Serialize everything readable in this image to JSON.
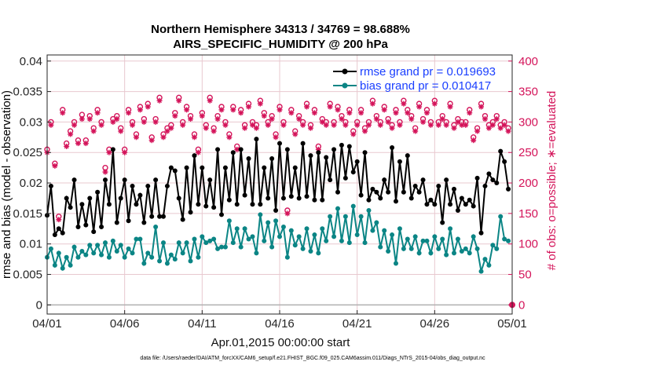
{
  "chart_data": {
    "type": "line",
    "title": "Northern Hemisphere 34313 / 34769 = 98.688%",
    "subtitle": "AIRS_SPECIFIC_HUMIDITY @ 200 hPa",
    "xlabel": "Apr.01,2015 00:00:00 start",
    "ylabel_left": "rmse and bias (model - observation)",
    "ylabel_right": "# of obs: o=possible; ∗=evaluated",
    "footnote": "data file: /Users/raeder/DAI/ATM_forcXX/CAM6_setup/f.e21.FHIST_BGC.f09_025.CAM6assim.011/Diags_NTrS_2015-04/obs_diag_output.nc",
    "xlim": [
      0,
      30
    ],
    "ylim_left": [
      -0.0015,
      0.041
    ],
    "ylim_right": [
      -15,
      410
    ],
    "x_tick_values": [
      0,
      5,
      10,
      15,
      20,
      25,
      30
    ],
    "x_tick_labels": [
      "04/01",
      "04/06",
      "04/11",
      "04/16",
      "04/21",
      "04/26",
      "05/01"
    ],
    "y_left_ticks": [
      "0",
      "0.005",
      "0.01",
      "0.015",
      "0.02",
      "0.025",
      "0.03",
      "0.035",
      "0.04"
    ],
    "y_left_tick_values": [
      0,
      0.005,
      0.01,
      0.015,
      0.02,
      0.025,
      0.03,
      0.035,
      0.04
    ],
    "y_right_ticks": [
      "0",
      "50",
      "100",
      "150",
      "200",
      "250",
      "300",
      "350",
      "400"
    ],
    "y_right_tick_values": [
      0,
      50,
      100,
      150,
      200,
      250,
      300,
      350,
      400
    ],
    "legend_position": "top-right",
    "grid": true,
    "colors": {
      "rmse": "#000000",
      "bias": "#0b8585",
      "obs": "#d4145a",
      "legend_text": "#1a3fff",
      "grid": "#e8c8cf",
      "zero_line": "#b0b0b0"
    },
    "series": [
      {
        "name": "rmse grand pr = 0.019693",
        "axis": "left",
        "x": [
          0,
          0.25,
          0.5,
          0.75,
          1,
          1.25,
          1.5,
          1.75,
          2,
          2.25,
          2.5,
          2.75,
          3,
          3.25,
          3.5,
          3.75,
          4,
          4.25,
          4.5,
          4.75,
          5,
          5.25,
          5.5,
          5.75,
          6,
          6.25,
          6.5,
          6.75,
          7,
          7.25,
          7.5,
          7.75,
          8,
          8.25,
          8.5,
          8.75,
          9,
          9.25,
          9.5,
          9.75,
          10,
          10.25,
          10.5,
          10.75,
          11,
          11.25,
          11.5,
          11.75,
          12,
          12.25,
          12.5,
          12.75,
          13,
          13.25,
          13.5,
          13.75,
          14,
          14.25,
          14.5,
          14.75,
          15,
          15.25,
          15.5,
          15.75,
          16,
          16.25,
          16.5,
          16.75,
          17,
          17.25,
          17.5,
          17.75,
          18,
          18.25,
          18.5,
          18.75,
          19,
          19.25,
          19.5,
          19.75,
          20,
          20.25,
          20.5,
          20.75,
          21,
          21.25,
          21.5,
          21.75,
          22,
          22.25,
          22.5,
          22.75,
          23,
          23.25,
          23.5,
          23.75,
          24,
          24.25,
          24.5,
          24.75,
          25,
          25.25,
          25.5,
          25.75,
          26,
          26.25,
          26.5,
          26.75,
          27,
          27.25,
          27.5,
          27.75,
          28,
          28.25,
          28.5,
          28.75,
          29,
          29.25,
          29.5,
          29.75
        ],
        "values": [
          0.0147,
          0.0195,
          0.0115,
          0.0125,
          0.0118,
          0.0175,
          0.016,
          0.0205,
          0.0128,
          0.0165,
          0.0131,
          0.0175,
          0.012,
          0.0185,
          0.0128,
          0.0205,
          0.0165,
          0.0255,
          0.0135,
          0.0175,
          0.0205,
          0.0138,
          0.0195,
          0.0165,
          0.018,
          0.0135,
          0.0195,
          0.0145,
          0.0205,
          0.0145,
          0.0145,
          0.0195,
          0.0225,
          0.022,
          0.0175,
          0.014,
          0.0225,
          0.0152,
          0.0245,
          0.0165,
          0.0225,
          0.0162,
          0.0205,
          0.016,
          0.0255,
          0.0148,
          0.0225,
          0.0172,
          0.025,
          0.0165,
          0.0255,
          0.018,
          0.024,
          0.0165,
          0.0272,
          0.0165,
          0.0225,
          0.0175,
          0.024,
          0.0155,
          0.0265,
          0.0175,
          0.0255,
          0.0178,
          0.0225,
          0.0175,
          0.0265,
          0.0178,
          0.0245,
          0.0172,
          0.025,
          0.0172,
          0.0242,
          0.0205,
          0.0255,
          0.0185,
          0.0262,
          0.0208,
          0.026,
          0.0218,
          0.0235,
          0.018,
          0.025,
          0.0172,
          0.019,
          0.0185,
          0.0175,
          0.0205,
          0.0185,
          0.0258,
          0.017,
          0.0235,
          0.0185,
          0.0245,
          0.0175,
          0.0195,
          0.0185,
          0.0205,
          0.0165,
          0.0172,
          0.0165,
          0.0195,
          0.0135,
          0.0205,
          0.0165,
          0.019,
          0.0155,
          0.0175,
          0.0165,
          0.0172,
          0.0162,
          0.0208,
          0.0118,
          0.0195,
          0.0215,
          0.0205,
          0.02,
          0.0252,
          0.0235,
          0.019
        ]
      },
      {
        "name": "bias grand pr = 0.010417",
        "axis": "left",
        "x": [
          0,
          0.25,
          0.5,
          0.75,
          1,
          1.25,
          1.5,
          1.75,
          2,
          2.25,
          2.5,
          2.75,
          3,
          3.25,
          3.5,
          3.75,
          4,
          4.25,
          4.5,
          4.75,
          5,
          5.25,
          5.5,
          5.75,
          6,
          6.25,
          6.5,
          6.75,
          7,
          7.25,
          7.5,
          7.75,
          8,
          8.25,
          8.5,
          8.75,
          9,
          9.25,
          9.5,
          9.75,
          10,
          10.25,
          10.5,
          10.75,
          11,
          11.25,
          11.5,
          11.75,
          12,
          12.25,
          12.5,
          12.75,
          13,
          13.25,
          13.5,
          13.75,
          14,
          14.25,
          14.5,
          14.75,
          15,
          15.25,
          15.5,
          15.75,
          16,
          16.25,
          16.5,
          16.75,
          17,
          17.25,
          17.5,
          17.75,
          18,
          18.25,
          18.5,
          18.75,
          19,
          19.25,
          19.5,
          19.75,
          20,
          20.25,
          20.5,
          20.75,
          21,
          21.25,
          21.5,
          21.75,
          22,
          22.25,
          22.5,
          22.75,
          23,
          23.25,
          23.5,
          23.75,
          24,
          24.25,
          24.5,
          24.75,
          25,
          25.25,
          25.5,
          25.75,
          26,
          26.25,
          26.5,
          26.75,
          27,
          27.25,
          27.5,
          27.75,
          28,
          28.25,
          28.5,
          28.75,
          29,
          29.25,
          29.5,
          29.75
        ],
        "values": [
          0.0078,
          0.0092,
          0.0065,
          0.0085,
          0.006,
          0.0078,
          0.0065,
          0.0095,
          0.0078,
          0.0088,
          0.0082,
          0.0098,
          0.0085,
          0.0098,
          0.0082,
          0.0102,
          0.0078,
          0.0105,
          0.0088,
          0.0098,
          0.0078,
          0.0092,
          0.0085,
          0.0108,
          0.0108,
          0.0068,
          0.0085,
          0.0078,
          0.0128,
          0.0072,
          0.0102,
          0.0068,
          0.0082,
          0.0075,
          0.0102,
          0.0085,
          0.0102,
          0.0072,
          0.0108,
          0.0078,
          0.0112,
          0.0102,
          0.0105,
          0.0108,
          0.0092,
          0.0095,
          0.0095,
          0.0138,
          0.0102,
          0.0125,
          0.0095,
          0.0125,
          0.0108,
          0.0112,
          0.0085,
          0.0148,
          0.0105,
          0.0135,
          0.0095,
          0.0138,
          0.0112,
          0.0128,
          0.0078,
          0.0122,
          0.0098,
          0.0112,
          0.0092,
          0.0125,
          0.0088,
          0.0115,
          0.0085,
          0.0125,
          0.0105,
          0.0145,
          0.0112,
          0.0158,
          0.0105,
          0.0145,
          0.0102,
          0.0162,
          0.0115,
          0.0145,
          0.0102,
          0.0155,
          0.0122,
          0.0135,
          0.0095,
          0.0122,
          0.0088,
          0.0115,
          0.0068,
          0.0125,
          0.0092,
          0.0108,
          0.0092,
          0.0112,
          0.0085,
          0.0105,
          0.0105,
          0.0085,
          0.0112,
          0.0092,
          0.0108,
          0.0082,
          0.0125,
          0.0085,
          0.0108,
          0.0088,
          0.0092,
          0.0085,
          0.0112,
          0.0092,
          0.0055,
          0.0075,
          0.0065,
          0.0098,
          0.0092,
          0.0145,
          0.0108,
          0.0105
        ]
      },
      {
        "name": "# of obs possible",
        "axis": "right",
        "marker": "o",
        "x": [
          0,
          0.25,
          0.5,
          0.75,
          1,
          1.25,
          1.5,
          1.75,
          2,
          2.25,
          2.5,
          2.75,
          3,
          3.25,
          3.5,
          3.75,
          4,
          4.25,
          4.5,
          4.75,
          5,
          5.25,
          5.5,
          5.75,
          6,
          6.25,
          6.5,
          6.75,
          7,
          7.25,
          7.5,
          7.75,
          8,
          8.25,
          8.5,
          8.75,
          9,
          9.25,
          9.5,
          9.75,
          10,
          10.25,
          10.5,
          10.75,
          11,
          11.25,
          11.5,
          11.75,
          12,
          12.25,
          12.5,
          12.75,
          13,
          13.25,
          13.5,
          13.75,
          14,
          14.25,
          14.5,
          14.75,
          15,
          15.25,
          15.5,
          15.75,
          16,
          16.25,
          16.5,
          16.75,
          17,
          17.25,
          17.5,
          17.75,
          18,
          18.25,
          18.5,
          18.75,
          19,
          19.25,
          19.5,
          19.75,
          20,
          20.25,
          20.5,
          20.75,
          21,
          21.25,
          21.5,
          21.75,
          22,
          22.25,
          22.5,
          22.75,
          23,
          23.25,
          23.5,
          23.75,
          24,
          24.25,
          24.5,
          24.75,
          25,
          25.25,
          25.5,
          25.75,
          26,
          26.25,
          26.5,
          26.75,
          27,
          27.25,
          27.5,
          27.75,
          28,
          28.25,
          28.5,
          28.75,
          29,
          29.25,
          29.5,
          29.75
        ],
        "values": [
          255,
          300,
          232,
          145,
          320,
          265,
          285,
          300,
          270,
          312,
          270,
          310,
          290,
          320,
          300,
          225,
          255,
          305,
          310,
          290,
          255,
          320,
          300,
          280,
          325,
          305,
          330,
          275,
          305,
          340,
          280,
          290,
          295,
          315,
          340,
          300,
          325,
          310,
          280,
          255,
          315,
          295,
          340,
          290,
          310,
          325,
          300,
          280,
          325,
          260,
          320,
          295,
          330,
          300,
          295,
          335,
          315,
          300,
          310,
          280,
          325,
          300,
          155,
          320,
          285,
          310,
          300,
          330,
          295,
          320,
          260,
          305,
          300,
          330,
          300,
          325,
          310,
          300,
          320,
          285,
          300,
          320,
          290,
          300,
          335,
          310,
          300,
          325,
          305,
          295,
          320,
          300,
          335,
          320,
          310,
          290,
          330,
          305,
          320,
          300,
          335,
          300,
          310,
          300,
          330,
          295,
          305,
          300,
          300,
          320,
          275,
          290,
          330,
          310,
          295,
          300,
          310,
          295,
          300,
          290
        ]
      },
      {
        "name": "# of obs evaluated",
        "axis": "right",
        "marker": "*",
        "x": [
          0,
          0.25,
          0.5,
          0.75,
          1,
          1.25,
          1.5,
          1.75,
          2,
          2.25,
          2.5,
          2.75,
          3,
          3.25,
          3.5,
          3.75,
          4,
          4.25,
          4.5,
          4.75,
          5,
          5.25,
          5.5,
          5.75,
          6,
          6.25,
          6.5,
          6.75,
          7,
          7.25,
          7.5,
          7.75,
          8,
          8.25,
          8.5,
          8.75,
          9,
          9.25,
          9.5,
          9.75,
          10,
          10.25,
          10.5,
          10.75,
          11,
          11.25,
          11.5,
          11.75,
          12,
          12.25,
          12.5,
          12.75,
          13,
          13.25,
          13.5,
          13.75,
          14,
          14.25,
          14.5,
          14.75,
          15,
          15.25,
          15.5,
          15.75,
          16,
          16.25,
          16.5,
          16.75,
          17,
          17.25,
          17.5,
          17.75,
          18,
          18.25,
          18.5,
          18.75,
          19,
          19.25,
          19.5,
          19.75,
          20,
          20.25,
          20.5,
          20.75,
          21,
          21.25,
          21.5,
          21.75,
          22,
          22.25,
          22.5,
          22.75,
          23,
          23.25,
          23.5,
          23.75,
          24,
          24.25,
          24.5,
          24.75,
          25,
          25.25,
          25.5,
          25.75,
          26,
          26.25,
          26.5,
          26.75,
          27,
          27.25,
          27.5,
          27.75,
          28,
          28.25,
          28.5,
          28.75,
          29,
          29.25,
          29.5,
          29.75
        ],
        "values": [
          250,
          295,
          228,
          140,
          315,
          260,
          280,
          295,
          265,
          305,
          265,
          305,
          285,
          315,
          295,
          218,
          250,
          300,
          305,
          285,
          250,
          315,
          295,
          275,
          320,
          300,
          325,
          270,
          300,
          335,
          275,
          285,
          290,
          310,
          335,
          295,
          320,
          305,
          275,
          250,
          310,
          290,
          335,
          285,
          305,
          320,
          295,
          275,
          320,
          255,
          315,
          290,
          325,
          295,
          290,
          330,
          310,
          295,
          305,
          275,
          320,
          295,
          150,
          315,
          280,
          305,
          295,
          325,
          290,
          315,
          255,
          300,
          295,
          325,
          295,
          320,
          305,
          295,
          315,
          280,
          295,
          315,
          285,
          295,
          330,
          305,
          295,
          320,
          300,
          290,
          315,
          295,
          330,
          315,
          305,
          285,
          325,
          300,
          315,
          295,
          330,
          295,
          305,
          295,
          325,
          290,
          300,
          295,
          295,
          315,
          270,
          285,
          325,
          305,
          290,
          295,
          305,
          290,
          295,
          285
        ]
      }
    ],
    "final_point": {
      "x": 30,
      "right_value": 0
    }
  }
}
